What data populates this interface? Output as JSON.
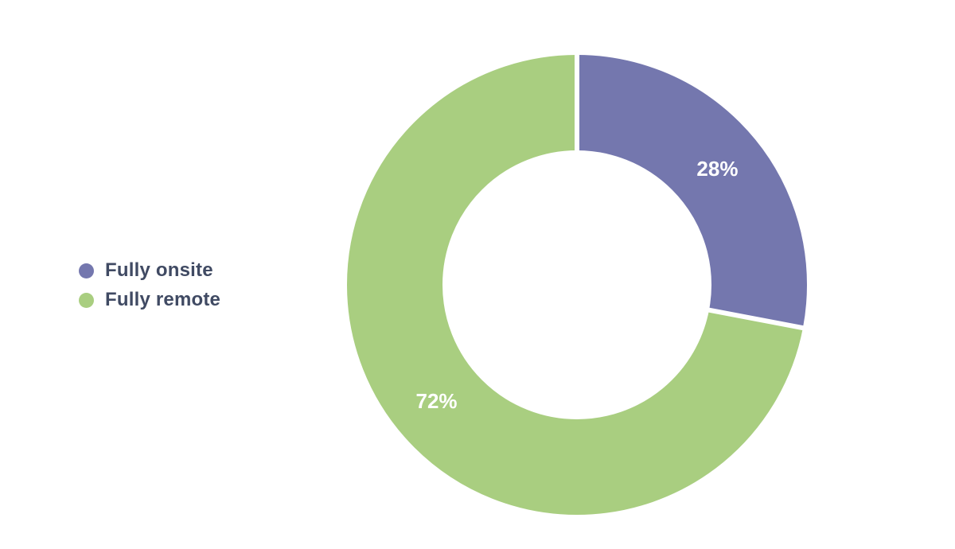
{
  "chart_data": {
    "type": "pie",
    "subtype": "donut",
    "direction": "clockwise",
    "start_angle_deg": 0,
    "legend_position": "left",
    "donut_hole_ratio": 0.585,
    "segments": [
      {
        "label": "Fully onsite",
        "value": 28,
        "display": "28%",
        "color": "#7477ae"
      },
      {
        "label": "Fully remote",
        "value": 72,
        "display": "72%",
        "color": "#a9ce80"
      }
    ]
  },
  "colors": {
    "background": "#ffffff",
    "segment_label_text": "#ffffff",
    "legend_text": "#404a63",
    "segment_gap": "#ffffff"
  }
}
